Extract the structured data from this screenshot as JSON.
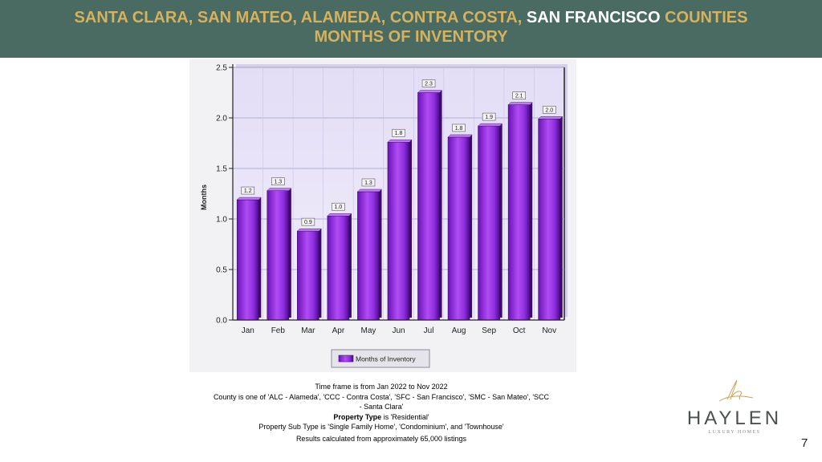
{
  "header": {
    "line1_part1": "SANTA CLARA, SAN MATEO, ALAMEDA, CONTRA COSTA, ",
    "line1_highlight": "SAN FRANCISCO",
    "line1_part2": " COUNTIES",
    "line2": "MONTHS OF INVENTORY"
  },
  "chart_data": {
    "type": "bar",
    "categories": [
      "Jan",
      "Feb",
      "Mar",
      "Apr",
      "May",
      "Jun",
      "Jul",
      "Aug",
      "Sep",
      "Oct",
      "Nov"
    ],
    "values": [
      1.19,
      1.28,
      0.88,
      1.03,
      1.27,
      1.76,
      2.25,
      1.81,
      1.92,
      2.13,
      1.99
    ],
    "data_labels": [
      "1.2",
      "1.3",
      "0.9",
      "1.0",
      "1.3",
      "1.8",
      "2.3",
      "1.8",
      "1.9",
      "2.1",
      "2.0"
    ],
    "yticks": [
      "0.0",
      "0.5",
      "1.0",
      "1.5",
      "2.0",
      "2.5"
    ],
    "ylim": [
      0,
      2.5
    ],
    "ylabel": "Months",
    "legend": "Months of Inventory",
    "legend_position": "bottom",
    "bar_color": "#8b2be2",
    "plot_background": "#e8e4f6",
    "grid": true
  },
  "notes": {
    "line1": "Time frame is from Jan 2022 to Nov 2022",
    "line2": "County is one of 'ALC - Alameda', 'CCC - Contra Costa', 'SFC - San Francisco', 'SMC - San Mateo', 'SCC",
    "line3": "- Santa Clara'",
    "line4_label": "Property Type",
    "line4_rest": " is 'Residential'",
    "line5": "Property Sub Type is 'Single Family Home', 'Condominium', and 'Townhouse'",
    "line6": "Results calculated from approximately 65,000 listings"
  },
  "logo": {
    "name": "HAYLEN",
    "subtitle": "LUXURY HOMES"
  },
  "page_number": "7"
}
